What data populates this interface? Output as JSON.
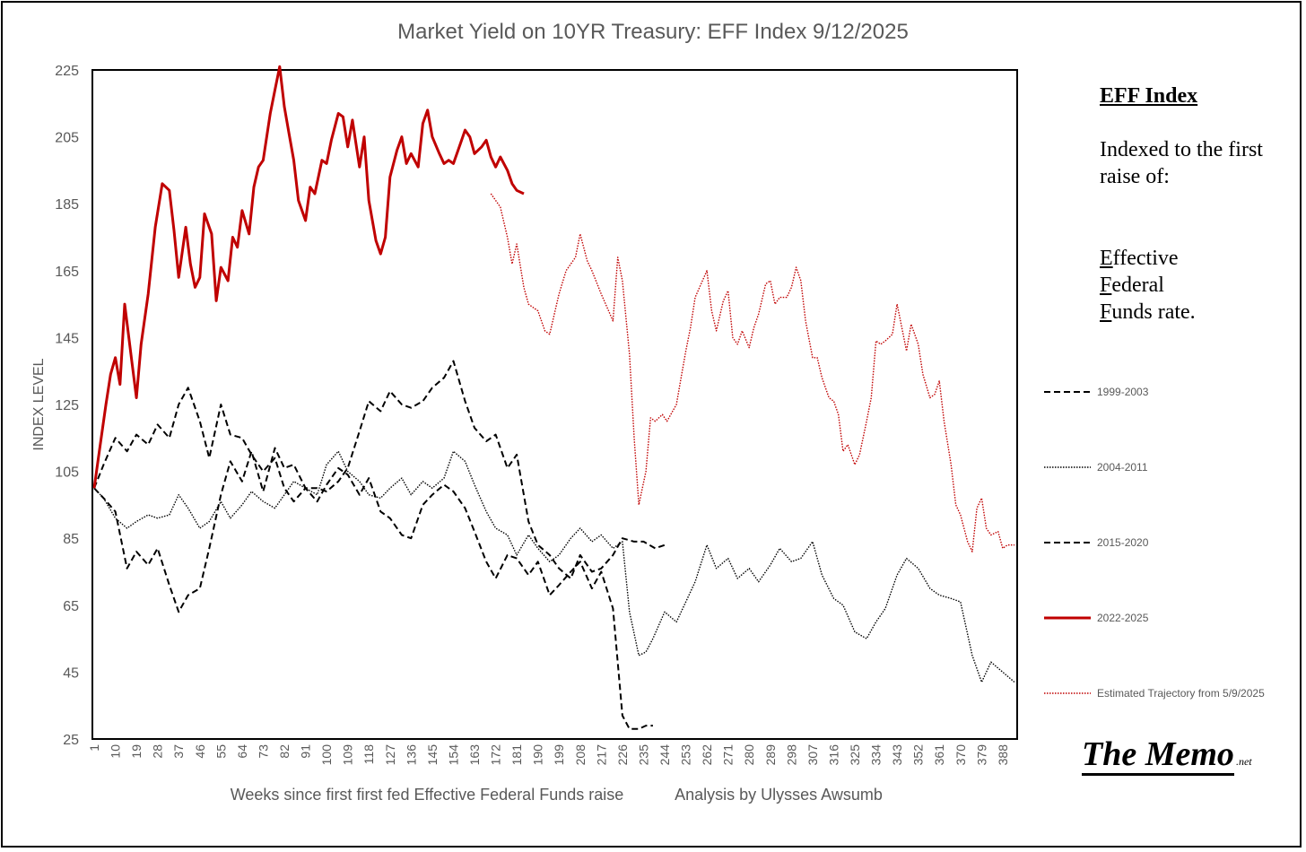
{
  "note": {
    "title": "EFF Index",
    "body": "Indexed to the first raise of:",
    "terms": [
      {
        "initial": "E",
        "rest": "ffective"
      },
      {
        "initial": "F",
        "rest": "ederal"
      },
      {
        "initial": "F",
        "rest": "unds rate."
      }
    ]
  },
  "branding": {
    "main": "The Memo",
    "suffix": ".net"
  },
  "chart_data": {
    "type": "line",
    "title": "Market Yield on 10YR Treasury: EFF Index 9/12/2025",
    "xlabel": "Weeks since first first fed Effective Federal Funds raise",
    "xlabel_secondary": "Analysis by Ulysses Awsumb",
    "ylabel": "INDEX LEVEL",
    "ylim": [
      25,
      225
    ],
    "xlim": [
      1,
      393
    ],
    "yticks": [
      225,
      205,
      185,
      165,
      145,
      125,
      105,
      85,
      65,
      45,
      25
    ],
    "xticks": [
      1,
      10,
      19,
      28,
      37,
      46,
      55,
      64,
      73,
      82,
      91,
      100,
      109,
      118,
      127,
      136,
      145,
      154,
      163,
      172,
      181,
      190,
      199,
      208,
      217,
      226,
      235,
      244,
      253,
      262,
      271,
      280,
      289,
      298,
      307,
      316,
      325,
      334,
      343,
      352,
      361,
      370,
      379,
      388
    ],
    "legend_position": "right",
    "series": [
      {
        "name": "1999-2003",
        "style": "dashed",
        "color": "#000000",
        "x": [
          1,
          5,
          10,
          15,
          19,
          24,
          28,
          33,
          37,
          41,
          46,
          50,
          55,
          59,
          64,
          68,
          73,
          78,
          82,
          86,
          91,
          96,
          100,
          105,
          109,
          114,
          118,
          123,
          127,
          132,
          136,
          141,
          145,
          150,
          154,
          159,
          163,
          168,
          172,
          177,
          181,
          186,
          190,
          195,
          199,
          204,
          208,
          213,
          217,
          222,
          226,
          229,
          233,
          236,
          239
        ],
        "y": [
          100,
          107,
          115,
          111,
          116,
          113,
          119,
          115,
          125,
          130,
          120,
          109,
          125,
          116,
          115,
          110,
          105,
          109,
          100,
          96,
          100,
          96,
          101,
          106,
          104,
          98,
          103,
          93,
          91,
          86,
          85,
          95,
          98,
          101,
          99,
          94,
          87,
          78,
          73,
          80,
          79,
          74,
          78,
          68,
          71,
          75,
          78,
          70,
          75,
          64,
          32,
          28,
          28,
          29,
          29
        ]
      },
      {
        "name": "2004-2011",
        "style": "dotted",
        "color": "#000000",
        "x": [
          1,
          5,
          10,
          15,
          19,
          24,
          28,
          33,
          37,
          41,
          46,
          50,
          55,
          59,
          64,
          68,
          73,
          78,
          82,
          86,
          91,
          96,
          100,
          105,
          109,
          114,
          118,
          123,
          127,
          132,
          136,
          141,
          145,
          150,
          154,
          159,
          163,
          168,
          172,
          177,
          181,
          186,
          190,
          195,
          199,
          204,
          208,
          213,
          217,
          222,
          226,
          229,
          233,
          236,
          239,
          244,
          249,
          253,
          257,
          262,
          266,
          271,
          275,
          280,
          284,
          289,
          293,
          298,
          302,
          307,
          311,
          316,
          320,
          325,
          330,
          334,
          338,
          343,
          347,
          352,
          357,
          361,
          366,
          370,
          375,
          379,
          383,
          388,
          393
        ],
        "y": [
          100,
          97,
          91,
          88,
          90,
          92,
          91,
          92,
          98,
          94,
          88,
          90,
          96,
          91,
          95,
          99,
          96,
          94,
          98,
          102,
          100,
          98,
          107,
          111,
          105,
          102,
          98,
          97,
          100,
          103,
          98,
          102,
          100,
          103,
          111,
          108,
          101,
          93,
          88,
          86,
          80,
          86,
          82,
          78,
          80,
          85,
          88,
          84,
          86,
          82,
          84,
          63,
          50,
          51,
          55,
          63,
          60,
          66,
          72,
          83,
          76,
          79,
          73,
          76,
          72,
          77,
          82,
          78,
          79,
          84,
          74,
          67,
          65,
          57,
          55,
          60,
          64,
          74,
          79,
          76,
          70,
          68,
          67,
          66,
          50,
          42,
          48,
          45,
          42
        ]
      },
      {
        "name": "2015-2020",
        "style": "dashed",
        "color": "#000000",
        "x": [
          1,
          5,
          10,
          15,
          19,
          24,
          28,
          33,
          37,
          41,
          46,
          50,
          55,
          59,
          64,
          68,
          73,
          78,
          82,
          86,
          91,
          96,
          100,
          105,
          109,
          114,
          118,
          123,
          127,
          132,
          136,
          141,
          145,
          150,
          154,
          159,
          163,
          168,
          172,
          177,
          181,
          186,
          190,
          195,
          199,
          204,
          208,
          213,
          217,
          222,
          226,
          231,
          235,
          240,
          244
        ],
        "y": [
          100,
          97,
          93,
          76,
          81,
          77,
          82,
          71,
          63,
          68,
          70,
          82,
          98,
          108,
          102,
          111,
          99,
          112,
          106,
          107,
          100,
          100,
          99,
          102,
          106,
          117,
          126,
          123,
          129,
          125,
          124,
          126,
          130,
          133,
          138,
          126,
          118,
          114,
          116,
          106,
          110,
          90,
          83,
          80,
          76,
          73,
          80,
          75,
          76,
          80,
          85,
          84,
          84,
          82,
          83
        ]
      },
      {
        "name": "2022-2025",
        "style": "solid",
        "color": "#c00000",
        "x": [
          1,
          3,
          6,
          8,
          10,
          12,
          14,
          17,
          19,
          21,
          24,
          27,
          30,
          33,
          35,
          37,
          40,
          42,
          44,
          46,
          48,
          51,
          53,
          55,
          58,
          60,
          62,
          64,
          67,
          69,
          71,
          73,
          76,
          78,
          80,
          82,
          84,
          86,
          88,
          91,
          93,
          95,
          98,
          100,
          102,
          105,
          107,
          109,
          111,
          114,
          116,
          118,
          121,
          123,
          125,
          127,
          130,
          132,
          134,
          136,
          139,
          141,
          143,
          145,
          148,
          150,
          152,
          154,
          157,
          159,
          161,
          163,
          166,
          168,
          170,
          172,
          174,
          177,
          179,
          181,
          184
        ],
        "y": [
          100,
          110,
          125,
          134,
          139,
          131,
          155,
          138,
          127,
          143,
          158,
          178,
          191,
          189,
          177,
          163,
          178,
          167,
          160,
          163,
          182,
          176,
          156,
          166,
          162,
          175,
          172,
          183,
          176,
          190,
          196,
          198,
          212,
          219,
          226,
          214,
          206,
          198,
          186,
          180,
          190,
          188,
          198,
          197,
          204,
          212,
          211,
          202,
          210,
          196,
          205,
          186,
          174,
          170,
          175,
          193,
          201,
          205,
          197,
          200,
          196,
          209,
          213,
          205,
          200,
          197,
          198,
          197,
          203,
          207,
          205,
          200,
          202,
          204,
          199,
          196,
          199,
          195,
          191,
          189,
          188
        ]
      },
      {
        "name": "Estimated Trajectory from 5/9/2025",
        "style": "dotted",
        "color": "#c00000",
        "x": [
          170,
          172,
          174,
          177,
          179,
          181,
          184,
          186,
          190,
          193,
          195,
          199,
          202,
          206,
          208,
          211,
          213,
          217,
          222,
          224,
          226,
          229,
          231,
          233,
          236,
          238,
          240,
          243,
          245,
          249,
          251,
          253,
          255,
          257,
          262,
          264,
          266,
          269,
          271,
          273,
          275,
          277,
          280,
          282,
          284,
          287,
          289,
          291,
          293,
          296,
          298,
          300,
          302,
          304,
          307,
          309,
          311,
          314,
          316,
          318,
          320,
          322,
          325,
          327,
          330,
          332,
          334,
          336,
          338,
          341,
          343,
          345,
          347,
          349,
          352,
          354,
          357,
          359,
          361,
          363,
          366,
          368,
          370,
          373,
          375,
          377,
          379,
          381,
          383,
          386,
          388,
          390,
          393
        ],
        "y": [
          188,
          186,
          184,
          175,
          167,
          173,
          160,
          155,
          153,
          147,
          146,
          158,
          165,
          169,
          176,
          168,
          165,
          158,
          150,
          169,
          162,
          140,
          115,
          95,
          105,
          121,
          120,
          122,
          120,
          125,
          133,
          141,
          148,
          157,
          165,
          153,
          147,
          156,
          159,
          145,
          143,
          147,
          142,
          148,
          152,
          161,
          162,
          155,
          157,
          157,
          160,
          166,
          162,
          150,
          139,
          139,
          133,
          127,
          126,
          122,
          111,
          113,
          107,
          110,
          120,
          127,
          144,
          143,
          144,
          146,
          155,
          148,
          141,
          149,
          143,
          134,
          127,
          128,
          132,
          120,
          107,
          95,
          92,
          84,
          81,
          94,
          97,
          88,
          86,
          87,
          82,
          83,
          83
        ]
      }
    ]
  }
}
